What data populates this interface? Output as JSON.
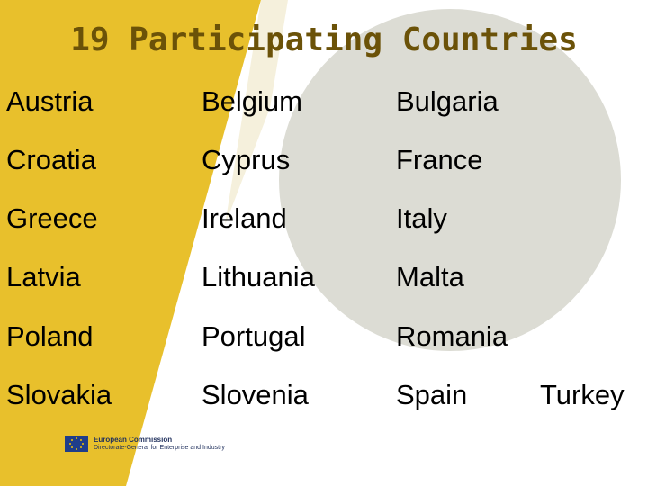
{
  "slide": {
    "title": "19 Participating Countries",
    "countries": [
      [
        "Austria",
        "Belgium",
        "Bulgaria"
      ],
      [
        "Croatia",
        "Cyprus",
        "France"
      ],
      [
        "Greece",
        "Ireland",
        "Italy"
      ],
      [
        "Latvia",
        "Lithuania",
        "Malta"
      ],
      [
        "Poland",
        "Portugal",
        "Romania"
      ],
      [
        "Slovakia",
        "Slovenia",
        "Spain",
        "Turkey"
      ]
    ],
    "footer": {
      "logo_line1": "European Commission",
      "logo_line2": "Directorate-General for Enterprise and Industry"
    },
    "colors": {
      "accent_yellow": "#e8c02c",
      "circle_gray": "#dcdcd4",
      "title_color": "#6b5208"
    }
  }
}
